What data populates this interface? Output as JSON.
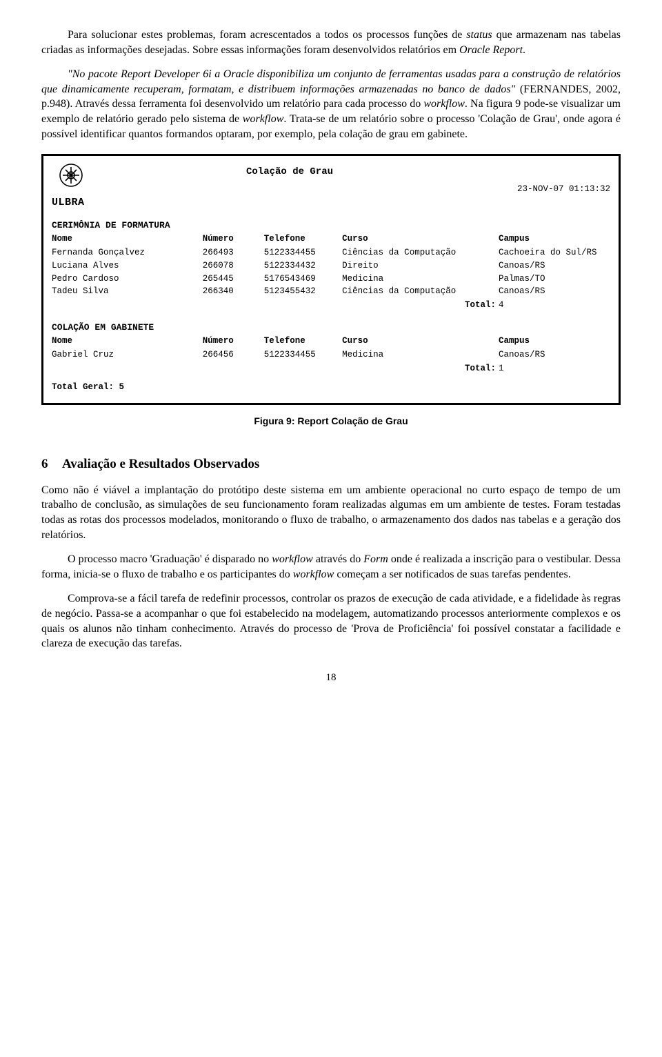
{
  "para1": {
    "a": "Para solucionar estes problemas, foram acrescentados a todos os processos funções de ",
    "b": "status",
    "c": " que armazenam nas tabelas criadas as informações desejadas. Sobre essas informações foram desenvolvidos relatórios em ",
    "d": "Oracle Report",
    "e": "."
  },
  "para2": {
    "a": "\"No pacote Report Developer 6i a Oracle disponibiliza um conjunto de ferramentas usadas para a construção de relatórios que dinamicamente recuperam, formatam, e distribuem informações armazenadas no banco de dados\"",
    "b": " (FERNANDES, 2002, p.948). Através dessa ferramenta foi desenvolvido um relatório para cada processo do ",
    "c": "workflow",
    "d": ". Na figura 9 pode-se visualizar um exemplo de relatório gerado pelo sistema de ",
    "e": "workflow",
    "f": ". Trata-se de um relatório sobre o processo 'Colação de Grau', onde agora é possível identificar quantos formandos optaram, por exemplo, pela colação de grau em gabinete."
  },
  "report": {
    "logoword": "ULBRA",
    "title": "Colação de Grau",
    "timestamp": "23-NOV-07 01:13:32",
    "section1": "CERIMÔNIA DE FORMATURA",
    "section2": "COLAÇÃO EM GABINETE",
    "cols": {
      "c1": "Nome",
      "c2": "Número",
      "c3": "Telefone",
      "c4": "Curso",
      "c5": "Campus"
    },
    "rows1": [
      {
        "c1": "Fernanda Gonçalvez",
        "c2": "266493",
        "c3": "5122334455",
        "c4": "Ciências da Computação",
        "c5": "Cachoeira do Sul/RS"
      },
      {
        "c1": "Luciana Alves",
        "c2": "266078",
        "c3": "5122334432",
        "c4": "Direito",
        "c5": "Canoas/RS"
      },
      {
        "c1": "Pedro Cardoso",
        "c2": "265445",
        "c3": "5176543469",
        "c4": "Medicina",
        "c5": "Palmas/TO"
      },
      {
        "c1": "Tadeu Silva",
        "c2": "266340",
        "c3": "5123455432",
        "c4": "Ciências da Computação",
        "c5": "Canoas/RS"
      }
    ],
    "total1_label": "Total:",
    "total1_val": "4",
    "rows2": [
      {
        "c1": "Gabriel Cruz",
        "c2": "266456",
        "c3": "5122334455",
        "c4": "Medicina",
        "c5": "Canoas/RS"
      }
    ],
    "total2_label": "Total:",
    "total2_val": "1",
    "grandtotal": "Total Geral: 5"
  },
  "caption": "Figura 9: Report Colação de Grau",
  "sec6": {
    "num": "6",
    "title": "Avaliação e Resultados Observados"
  },
  "para3": "Como não é viável a implantação do protótipo deste sistema em um ambiente operacional no curto espaço de tempo de um trabalho de conclusão, as simulações de seu funcionamento foram realizadas algumas em um ambiente de testes. Foram  testadas todas as rotas dos processos modelados, monitorando o fluxo de trabalho, o armazenamento dos dados nas tabelas e a geração dos relatórios.",
  "para4": {
    "a": "O processo macro 'Graduação' é disparado no ",
    "b": "workflow",
    "c": " através do ",
    "d": "Form",
    "e": " onde é realizada a inscrição para o vestibular. Dessa forma, inicia-se o fluxo de trabalho e os participantes do ",
    "f": "workflow",
    "g": " começam a ser notificados de suas tarefas pendentes."
  },
  "para5": "Comprova-se a fácil tarefa de redefinir processos, controlar os prazos de execução de cada atividade, e a fidelidade às regras de negócio. Passa-se a acompanhar o que foi estabelecido na modelagem, automatizando processos anteriormente complexos e os quais os alunos não tinham conhecimento. Através do processo de 'Prova de Proficiência' foi possível constatar a facilidade e clareza de execução das tarefas.",
  "pagenum": "18",
  "colwidths": {
    "c1": "27%",
    "c2": "11%",
    "c3": "14%",
    "c4": "28%",
    "c5": "20%"
  }
}
